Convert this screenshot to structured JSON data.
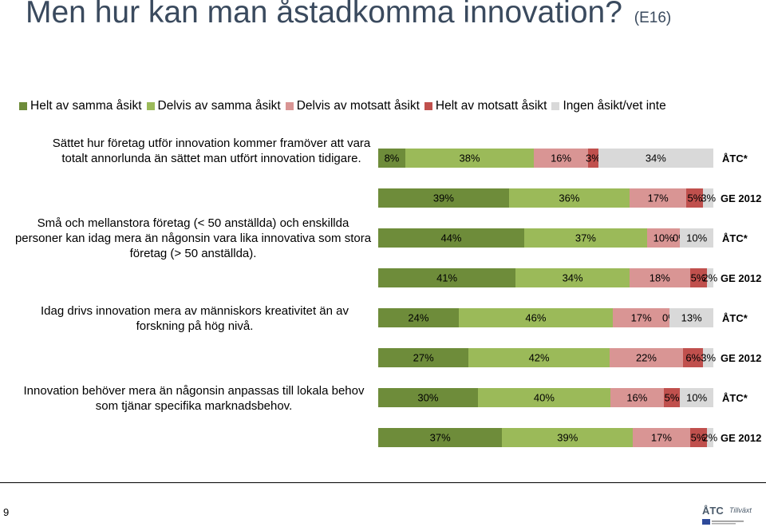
{
  "title": "Men hur kan man åstadkomma innovation?",
  "title_code": "(E16)",
  "page_number": "9",
  "colors": {
    "helt_samma": "#6e8c3a",
    "delvis_samma": "#9bba59",
    "delvis_motsatt": "#d99594",
    "helt_motsatt": "#c0504d",
    "ingen_asikt": "#d9d9d9"
  },
  "chart_data": {
    "type": "bar",
    "orientation": "horizontal",
    "stacked": true,
    "legend_position": "top",
    "legend": [
      "Helt av samma åsikt",
      "Delvis av samma åsikt",
      "Delvis av motsatt åsikt",
      "Helt av motsatt åsikt",
      "Ingen åsikt/vet inte"
    ],
    "questions": [
      "Sättet hur företag utför innovation kommer framöver att vara totalt annorlunda än sättet man utfört innovation tidigare.",
      "Små och mellanstora företag (< 50 anställda) och enskillda personer kan idag mera än någonsin vara lika innovativa som stora företag (> 50 anställda).",
      "Idag drivs innovation mera av människors kreativitet än av forskning på hög nivå.",
      "Innovation behöver mera än någonsin anpassas till lokala behov som tjänar specifika marknadsbehov."
    ],
    "bars": [
      {
        "group": "ÅTC*",
        "question": 0,
        "values": [
          8,
          38,
          16,
          3,
          34
        ],
        "labels": [
          "8%",
          "38%",
          "16%",
          "3%",
          "34%"
        ]
      },
      {
        "group": "GE 2012",
        "question": 0,
        "values": [
          39,
          36,
          17,
          5,
          3
        ],
        "labels": [
          "39%",
          "36%",
          "17%",
          "5%",
          "3%"
        ]
      },
      {
        "group": "ÅTC*",
        "question": 1,
        "values": [
          44,
          37,
          10,
          0,
          10
        ],
        "labels": [
          "44%",
          "37%",
          "10%",
          "0%",
          "10%"
        ]
      },
      {
        "group": "GE 2012",
        "question": 1,
        "values": [
          41,
          34,
          18,
          5,
          2
        ],
        "labels": [
          "41%",
          "34%",
          "18%",
          "5%",
          "2%"
        ]
      },
      {
        "group": "ÅTC*",
        "question": 2,
        "values": [
          24,
          46,
          17,
          0,
          13
        ],
        "labels": [
          "24%",
          "46%",
          "17%",
          "0%",
          "13%"
        ]
      },
      {
        "group": "GE 2012",
        "question": 2,
        "values": [
          27,
          42,
          22,
          6,
          3
        ],
        "labels": [
          "27%",
          "42%",
          "22%",
          "6%",
          "3%"
        ]
      },
      {
        "group": "ÅTC*",
        "question": 3,
        "values": [
          30,
          40,
          16,
          5,
          10
        ],
        "labels": [
          "30%",
          "40%",
          "16%",
          "5%",
          "10%"
        ]
      },
      {
        "group": "GE 2012",
        "question": 3,
        "values": [
          37,
          39,
          17,
          5,
          2
        ],
        "labels": [
          "37%",
          "39%",
          "17%",
          "5%",
          "2%"
        ]
      }
    ]
  }
}
